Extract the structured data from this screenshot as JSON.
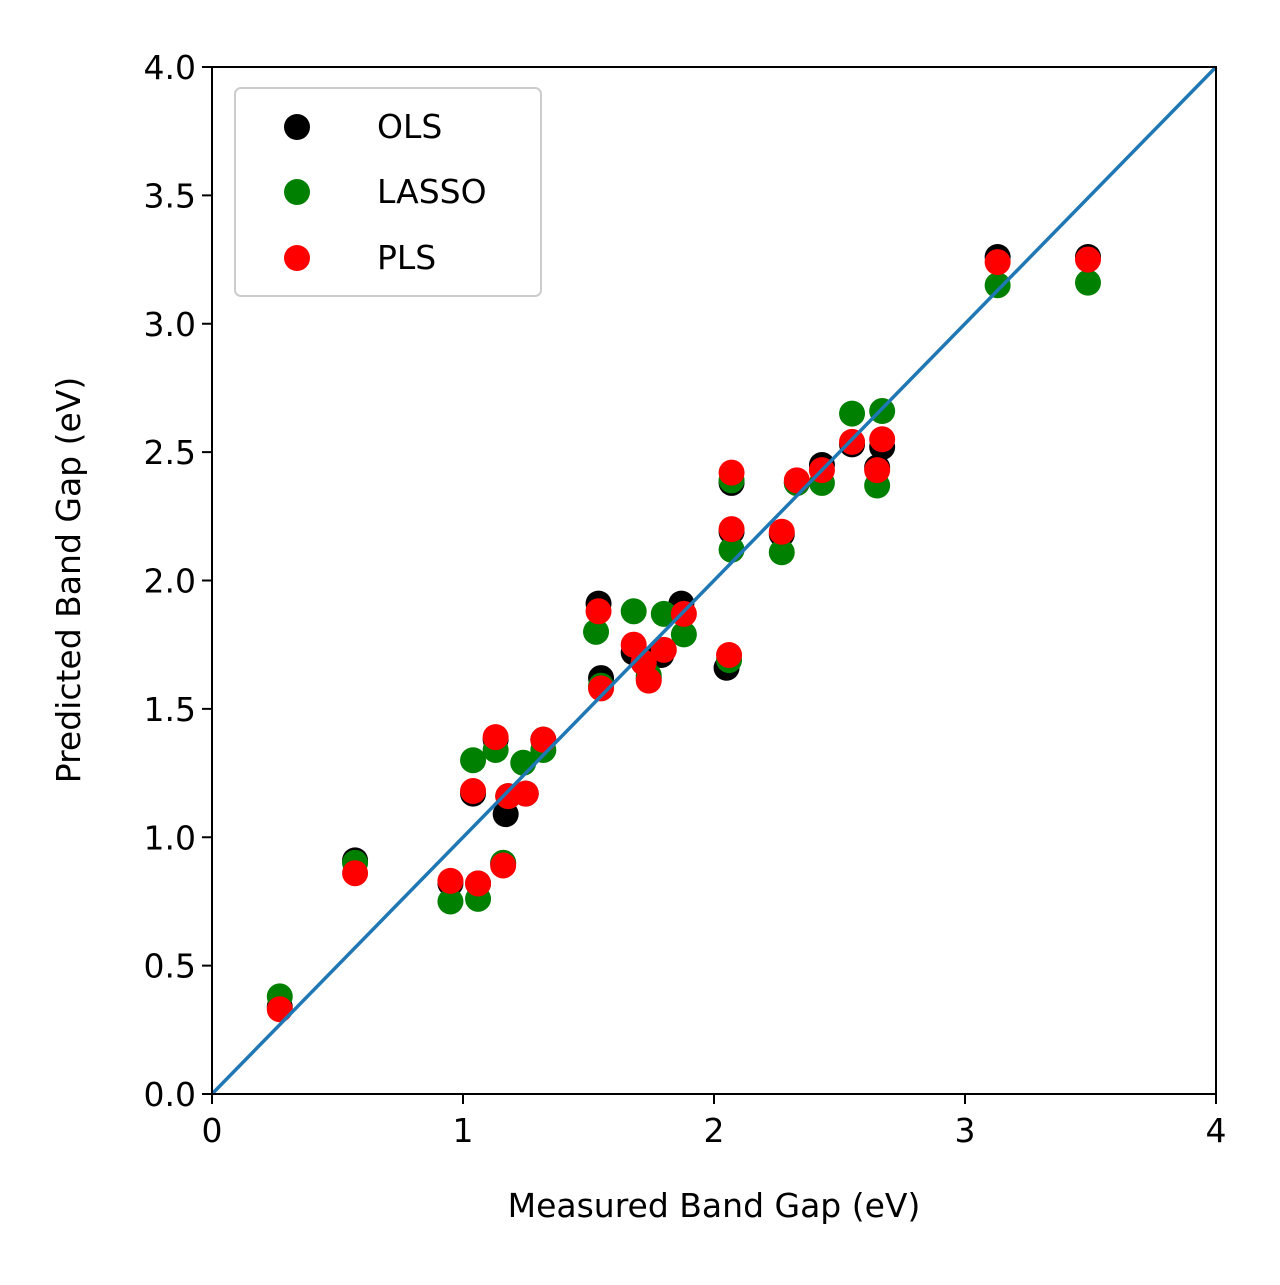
{
  "chart_data": {
    "type": "scatter",
    "title": "",
    "xlabel": "Measured Band Gap (eV)",
    "ylabel": "Predicted Band Gap (eV)",
    "xlim": [
      0,
      4
    ],
    "ylim": [
      0,
      4
    ],
    "xticks": [
      0,
      1,
      2,
      3,
      4
    ],
    "xtick_labels": [
      "0",
      "1",
      "2",
      "3",
      "4"
    ],
    "yticks": [
      0,
      0.5,
      1,
      1.5,
      2,
      2.5,
      3,
      3.5,
      4
    ],
    "ytick_labels": [
      "0.0",
      "0.5",
      "1.0",
      "1.5",
      "2.0",
      "2.5",
      "3.0",
      "3.5",
      "4.0"
    ],
    "grid": false,
    "legend_position": "top-left",
    "reference_line": {
      "from": [
        0,
        0
      ],
      "to": [
        4,
        4
      ],
      "color": "#1f77b4"
    },
    "series": [
      {
        "name": "OLS",
        "color": "#000000",
        "points": [
          [
            0.27,
            0.34
          ],
          [
            0.57,
            0.91
          ],
          [
            0.95,
            0.82
          ],
          [
            1.04,
            1.17
          ],
          [
            1.06,
            0.82
          ],
          [
            1.13,
            1.38
          ],
          [
            1.16,
            0.9
          ],
          [
            1.17,
            1.09
          ],
          [
            1.25,
            1.17
          ],
          [
            1.32,
            1.38
          ],
          [
            1.54,
            1.91
          ],
          [
            1.55,
            1.62
          ],
          [
            1.68,
            1.72
          ],
          [
            1.72,
            1.69
          ],
          [
            1.74,
            1.62
          ],
          [
            1.79,
            1.71
          ],
          [
            1.87,
            1.91
          ],
          [
            2.05,
            1.66
          ],
          [
            2.07,
            2.38
          ],
          [
            2.07,
            2.19
          ],
          [
            2.27,
            2.18
          ],
          [
            2.33,
            2.38
          ],
          [
            2.43,
            2.45
          ],
          [
            2.55,
            2.53
          ],
          [
            2.65,
            2.44
          ],
          [
            2.67,
            2.52
          ],
          [
            3.13,
            3.26
          ],
          [
            3.49,
            3.26
          ]
        ]
      },
      {
        "name": "LASSO",
        "color": "#008000",
        "points": [
          [
            0.27,
            0.38
          ],
          [
            0.57,
            0.9
          ],
          [
            0.95,
            0.75
          ],
          [
            1.04,
            1.3
          ],
          [
            1.06,
            0.76
          ],
          [
            1.13,
            1.34
          ],
          [
            1.16,
            0.9
          ],
          [
            1.18,
            1.16
          ],
          [
            1.24,
            1.29
          ],
          [
            1.32,
            1.34
          ],
          [
            1.53,
            1.8
          ],
          [
            1.55,
            1.59
          ],
          [
            1.68,
            1.88
          ],
          [
            1.72,
            1.68
          ],
          [
            1.74,
            1.63
          ],
          [
            1.8,
            1.87
          ],
          [
            1.88,
            1.79
          ],
          [
            2.06,
            1.69
          ],
          [
            2.07,
            2.39
          ],
          [
            2.07,
            2.12
          ],
          [
            2.27,
            2.11
          ],
          [
            2.33,
            2.38
          ],
          [
            2.43,
            2.38
          ],
          [
            2.55,
            2.65
          ],
          [
            2.65,
            2.37
          ],
          [
            2.67,
            2.66
          ],
          [
            3.13,
            3.15
          ],
          [
            3.49,
            3.16
          ]
        ]
      },
      {
        "name": "PLS",
        "color": "#ff0000",
        "points": [
          [
            0.27,
            0.33
          ],
          [
            0.57,
            0.86
          ],
          [
            0.95,
            0.83
          ],
          [
            1.04,
            1.18
          ],
          [
            1.06,
            0.82
          ],
          [
            1.13,
            1.39
          ],
          [
            1.16,
            0.89
          ],
          [
            1.18,
            1.16
          ],
          [
            1.25,
            1.17
          ],
          [
            1.32,
            1.38
          ],
          [
            1.54,
            1.88
          ],
          [
            1.55,
            1.58
          ],
          [
            1.68,
            1.75
          ],
          [
            1.72,
            1.68
          ],
          [
            1.74,
            1.61
          ],
          [
            1.8,
            1.73
          ],
          [
            1.88,
            1.87
          ],
          [
            2.06,
            1.71
          ],
          [
            2.07,
            2.42
          ],
          [
            2.07,
            2.2
          ],
          [
            2.27,
            2.19
          ],
          [
            2.33,
            2.39
          ],
          [
            2.43,
            2.43
          ],
          [
            2.55,
            2.54
          ],
          [
            2.65,
            2.43
          ],
          [
            2.67,
            2.55
          ],
          [
            3.13,
            3.24
          ],
          [
            3.49,
            3.25
          ]
        ]
      }
    ]
  }
}
